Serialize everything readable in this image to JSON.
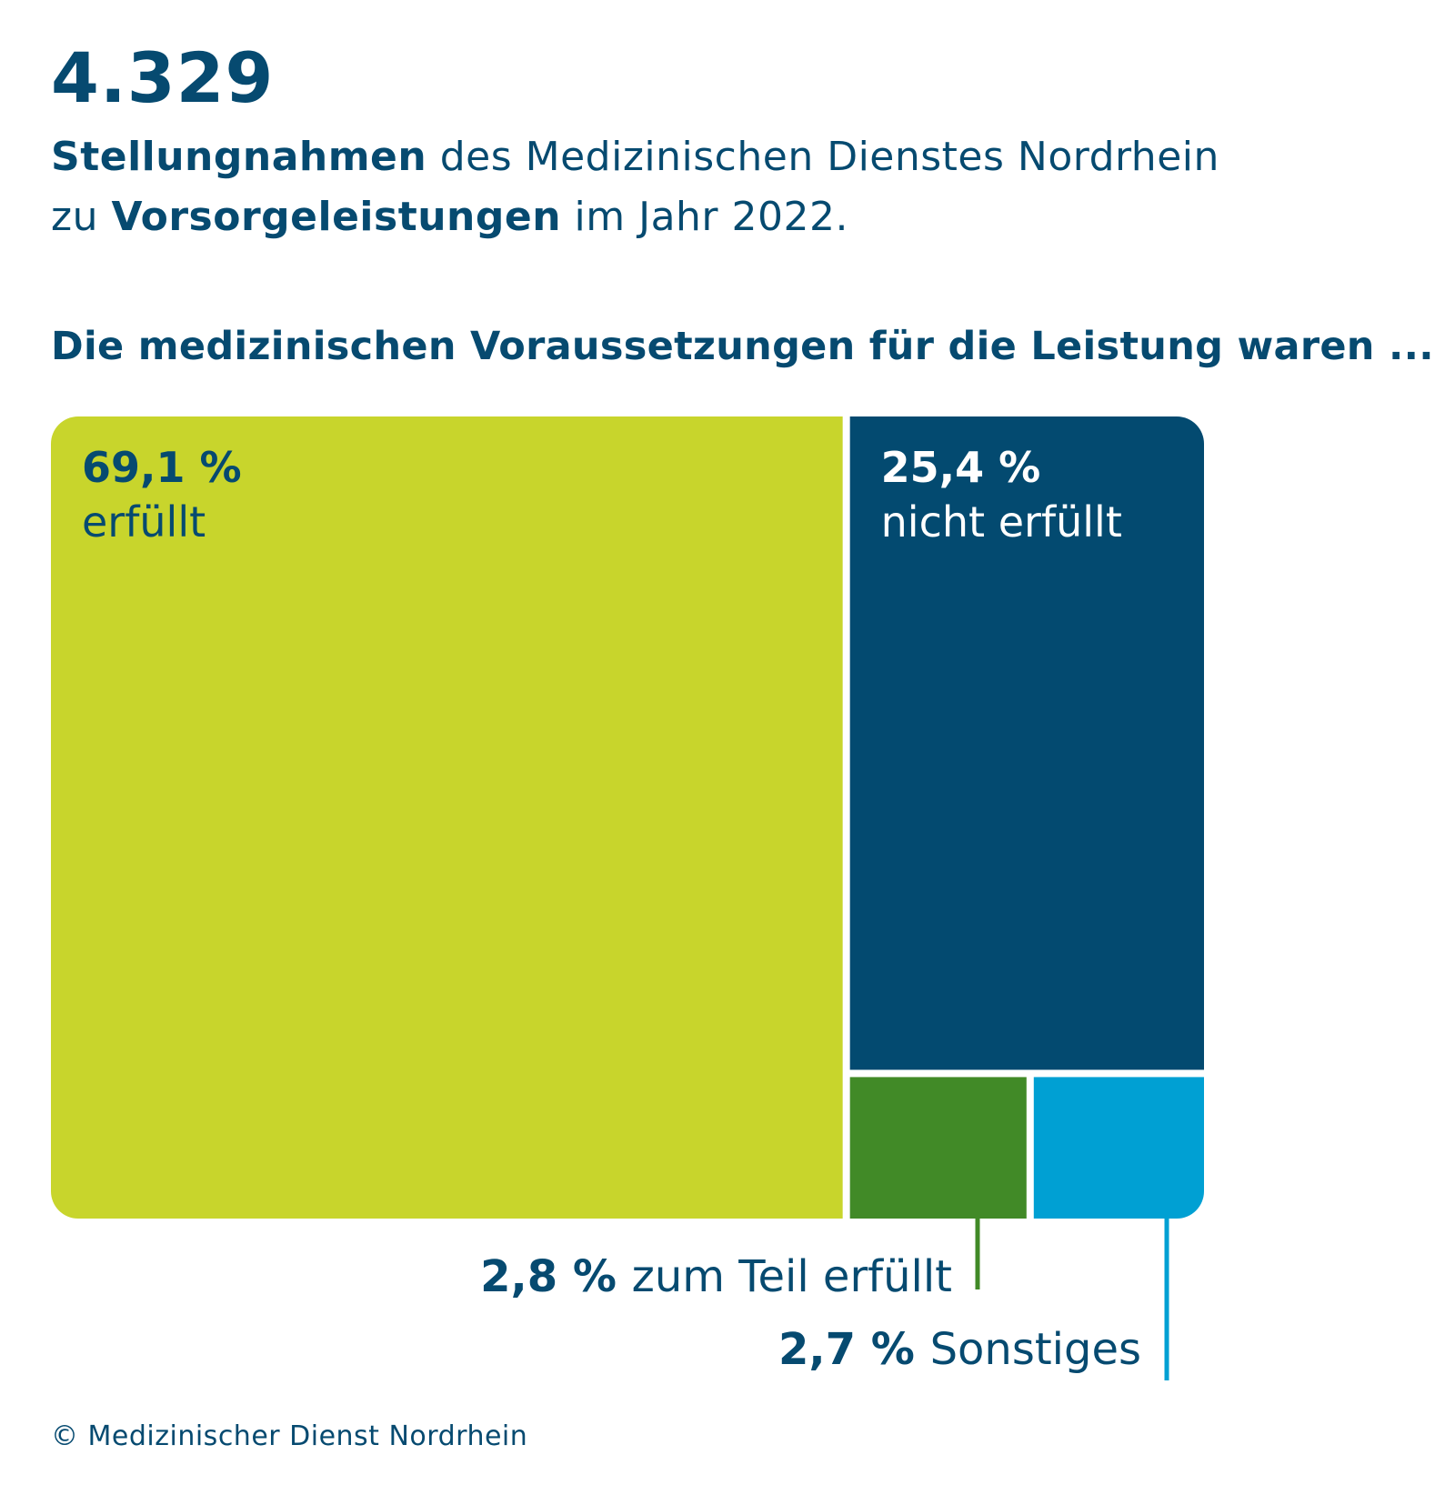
{
  "header": {
    "total": "4.329",
    "line1_bold": "Stellungnahmen",
    "line1_rest": " des Medizinischen Dienstes Nordrhein",
    "line2_pre": "zu ",
    "line2_bold": "Vorsorgeleistungen",
    "line2_rest": " im Jahr 2022."
  },
  "chart_data": {
    "type": "treemap",
    "title": "Die medizinischen Voraussetzungen für die Leistung waren ...",
    "unit": "%",
    "segments": [
      {
        "value_label": "69,1 %",
        "category": "erfüllt",
        "value": 69.1,
        "color": "#c8d52c"
      },
      {
        "value_label": "25,4 %",
        "category": "nicht erfüllt",
        "value": 25.4,
        "color": "#034a70"
      },
      {
        "value_label": "2,8 %",
        "category": "zum Teil erfüllt",
        "value": 2.8,
        "color": "#418a27"
      },
      {
        "value_label": "2,7 %",
        "category": "Sonstiges",
        "value": 2.7,
        "color": "#00a0d3"
      }
    ]
  },
  "footer": {
    "copyright": "© Medizinischer Dienst Nordrhein"
  }
}
